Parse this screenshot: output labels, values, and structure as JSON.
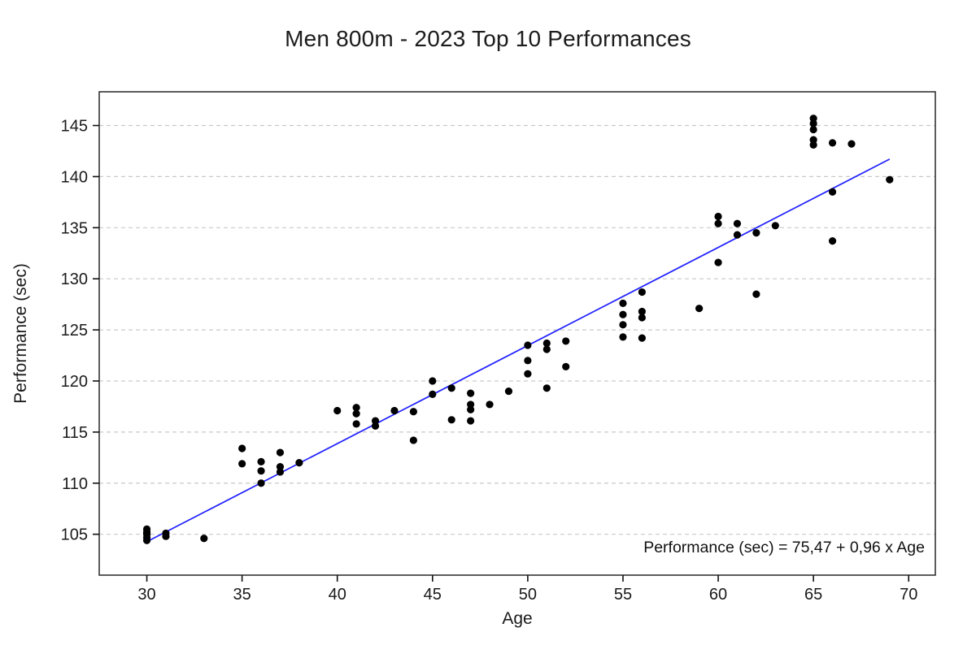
{
  "chart_data": {
    "type": "scatter",
    "title": "Men 800m - 2023 Top 10 Performances",
    "xlabel": "Age",
    "ylabel": "Performance (sec)",
    "x_ticks": [
      "30",
      "35",
      "40",
      "45",
      "50",
      "55",
      "60",
      "65",
      "70"
    ],
    "y_ticks": [
      "105",
      "110",
      "115",
      "120",
      "125",
      "130",
      "135",
      "140",
      "145"
    ],
    "xlim": [
      27.5,
      71.4
    ],
    "ylim": [
      101.0,
      148.3
    ],
    "grid": "horizontal-dashed",
    "legend": "none",
    "points": [
      [
        30,
        105.5
      ],
      [
        30,
        105.2
      ],
      [
        30,
        105.0
      ],
      [
        30,
        104.7
      ],
      [
        30,
        104.4
      ],
      [
        31,
        105.1
      ],
      [
        31,
        104.8
      ],
      [
        33,
        104.6
      ],
      [
        35,
        113.4
      ],
      [
        35,
        111.9
      ],
      [
        36,
        112.1
      ],
      [
        36,
        111.2
      ],
      [
        36,
        110.0
      ],
      [
        37,
        113.0
      ],
      [
        37,
        111.6
      ],
      [
        37,
        111.1
      ],
      [
        38,
        112.0
      ],
      [
        40,
        117.1
      ],
      [
        41,
        117.4
      ],
      [
        41,
        116.8
      ],
      [
        41,
        115.8
      ],
      [
        42,
        116.1
      ],
      [
        42,
        115.6
      ],
      [
        43,
        117.1
      ],
      [
        44,
        117.0
      ],
      [
        44,
        114.2
      ],
      [
        45,
        120.0
      ],
      [
        45,
        118.7
      ],
      [
        46,
        119.3
      ],
      [
        46,
        116.2
      ],
      [
        47,
        118.8
      ],
      [
        47,
        117.7
      ],
      [
        47,
        117.2
      ],
      [
        47,
        116.1
      ],
      [
        48,
        117.7
      ],
      [
        49,
        119.0
      ],
      [
        50,
        123.5
      ],
      [
        50,
        122.0
      ],
      [
        50,
        120.7
      ],
      [
        51,
        123.7
      ],
      [
        51,
        123.1
      ],
      [
        51,
        119.3
      ],
      [
        52,
        123.9
      ],
      [
        52,
        121.4
      ],
      [
        55,
        127.6
      ],
      [
        55,
        126.5
      ],
      [
        55,
        125.5
      ],
      [
        55,
        124.3
      ],
      [
        56,
        128.7
      ],
      [
        56,
        126.8
      ],
      [
        56,
        126.2
      ],
      [
        56,
        124.2
      ],
      [
        59,
        127.1
      ],
      [
        60,
        136.1
      ],
      [
        60,
        135.4
      ],
      [
        60,
        131.6
      ],
      [
        61,
        135.4
      ],
      [
        61,
        134.3
      ],
      [
        62,
        134.5
      ],
      [
        62,
        128.5
      ],
      [
        63,
        135.2
      ],
      [
        65,
        145.7
      ],
      [
        65,
        145.2
      ],
      [
        65,
        144.6
      ],
      [
        65,
        143.6
      ],
      [
        65,
        143.1
      ],
      [
        66,
        143.3
      ],
      [
        66,
        138.5
      ],
      [
        66,
        133.7
      ],
      [
        67,
        143.2
      ],
      [
        69,
        139.7
      ]
    ],
    "regression": {
      "slope": 0.96,
      "intercept": 75.47,
      "x_start": 30.1,
      "x_end": 69.0,
      "equation_label": "Performance (sec) =  75,47 + 0,96 x Age"
    },
    "colors": {
      "point": "#000000",
      "line": "#2222ff",
      "grid": "#c9c9c9",
      "axis": "#333333",
      "text": "#1a1a1a"
    }
  }
}
